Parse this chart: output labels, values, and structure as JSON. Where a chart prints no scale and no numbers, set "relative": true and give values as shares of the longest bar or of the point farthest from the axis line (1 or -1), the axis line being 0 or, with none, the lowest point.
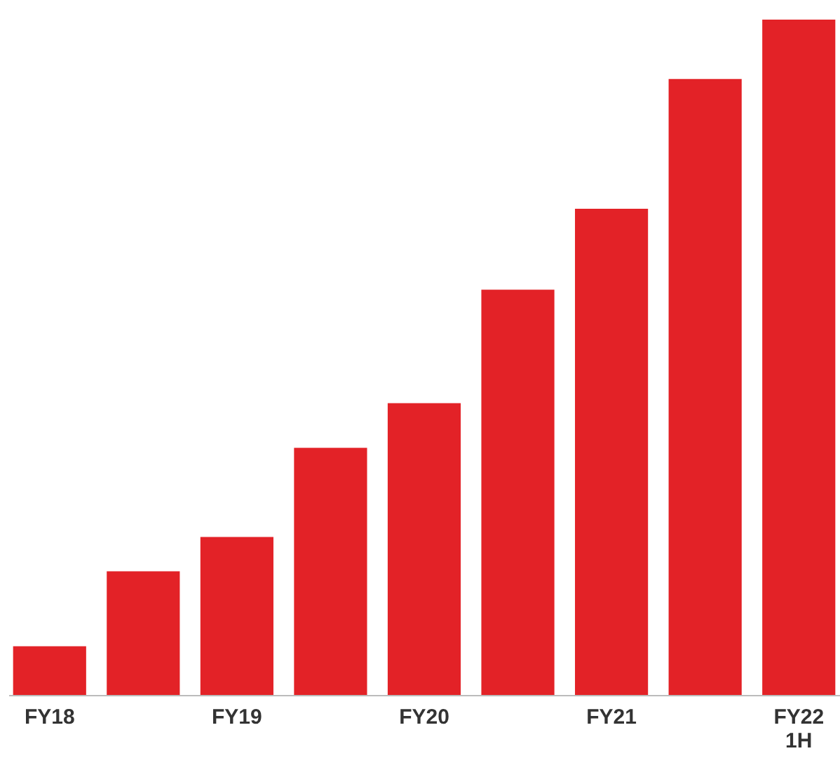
{
  "chart_data": {
    "type": "bar",
    "relative": true,
    "categories": [
      "FY18",
      null,
      "FY19",
      null,
      "FY20",
      null,
      "FY21",
      null,
      "FY22\n1H"
    ],
    "values": [
      0.072,
      0.183,
      0.234,
      0.366,
      0.432,
      0.6,
      0.72,
      0.912,
      1
    ],
    "color": "#e32227",
    "grid": false
  }
}
